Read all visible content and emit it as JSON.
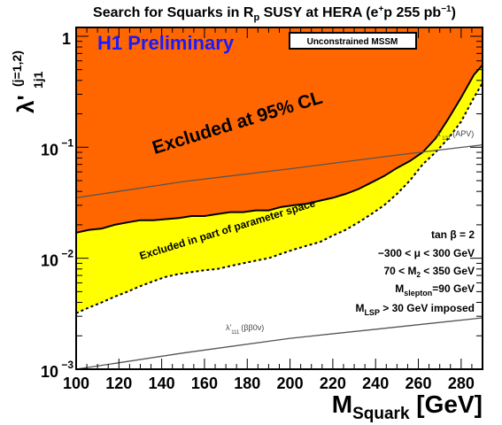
{
  "colors": {
    "excluded_strong": "#ff6600",
    "excluded_partial": "#ffff00",
    "preliminary_label": "#1a1aff",
    "frame": "#000000",
    "apv_line": "#555555",
    "bbnu_line": "#555555"
  },
  "chart_data": {
    "type": "area",
    "title_parts": {
      "pre": "Search for Squarks in ",
      "r": "R",
      "r_sub": "p",
      "post": " SUSY at HERA (e",
      "sup1": "+",
      "mid": "p 255 pb",
      "sup2": "−1",
      "end": ")"
    },
    "preliminary_label": "H1 Preliminary",
    "model_box": "Unconstrained MSSM",
    "xlabel": {
      "main": "M",
      "sub": "Squark",
      "unit": " [GeV]"
    },
    "ylabel": {
      "main": "λ'",
      "sub": "1j1",
      "extra": "(j=1,2)"
    },
    "xlim": [
      100,
      290
    ],
    "ylim": [
      0.001,
      1.2
    ],
    "yscale": "log",
    "xticks": [
      100,
      120,
      140,
      160,
      180,
      200,
      220,
      240,
      260,
      280
    ],
    "yticks": [
      {
        "value": 0.001,
        "base": "10",
        "exp": "−3"
      },
      {
        "value": 0.01,
        "base": "10",
        "exp": "−2"
      },
      {
        "value": 0.1,
        "base": "10",
        "exp": "−1"
      },
      {
        "value": 1,
        "base": "1",
        "exp": ""
      }
    ],
    "regions": {
      "excluded_95": {
        "label": "Excluded at 95% CL",
        "boundary": [
          [
            100,
            0.017
          ],
          [
            106,
            0.018
          ],
          [
            112,
            0.0185
          ],
          [
            118,
            0.02
          ],
          [
            124,
            0.021
          ],
          [
            130,
            0.022
          ],
          [
            136,
            0.022
          ],
          [
            142,
            0.0225
          ],
          [
            148,
            0.023
          ],
          [
            154,
            0.024
          ],
          [
            160,
            0.024
          ],
          [
            166,
            0.025
          ],
          [
            172,
            0.026
          ],
          [
            178,
            0.026
          ],
          [
            184,
            0.027
          ],
          [
            190,
            0.027
          ],
          [
            196,
            0.029
          ],
          [
            202,
            0.03
          ],
          [
            208,
            0.031
          ],
          [
            214,
            0.033
          ],
          [
            220,
            0.035
          ],
          [
            226,
            0.038
          ],
          [
            232,
            0.042
          ],
          [
            238,
            0.048
          ],
          [
            244,
            0.055
          ],
          [
            250,
            0.065
          ],
          [
            256,
            0.075
          ],
          [
            262,
            0.09
          ],
          [
            268,
            0.12
          ],
          [
            274,
            0.18
          ],
          [
            280,
            0.28
          ],
          [
            286,
            0.45
          ],
          [
            290,
            0.55
          ]
        ]
      },
      "excluded_partial": {
        "label": "Excluded in part of parameter space",
        "boundary": [
          [
            100,
            0.0032
          ],
          [
            106,
            0.0036
          ],
          [
            112,
            0.004
          ],
          [
            118,
            0.0045
          ],
          [
            124,
            0.005
          ],
          [
            130,
            0.0056
          ],
          [
            136,
            0.0062
          ],
          [
            142,
            0.0068
          ],
          [
            148,
            0.0072
          ],
          [
            154,
            0.0075
          ],
          [
            160,
            0.0078
          ],
          [
            166,
            0.008
          ],
          [
            172,
            0.0085
          ],
          [
            178,
            0.009
          ],
          [
            184,
            0.0095
          ],
          [
            190,
            0.01
          ],
          [
            196,
            0.011
          ],
          [
            202,
            0.012
          ],
          [
            208,
            0.013
          ],
          [
            214,
            0.014
          ],
          [
            220,
            0.016
          ],
          [
            226,
            0.018
          ],
          [
            232,
            0.021
          ],
          [
            238,
            0.025
          ],
          [
            244,
            0.03
          ],
          [
            250,
            0.038
          ],
          [
            256,
            0.05
          ],
          [
            262,
            0.07
          ],
          [
            268,
            0.09
          ],
          [
            274,
            0.12
          ],
          [
            280,
            0.17
          ],
          [
            286,
            0.28
          ],
          [
            290,
            0.38
          ]
        ]
      }
    },
    "series": [
      {
        "name": "λ'121 (APV)",
        "label_main": "λ'",
        "label_sub": "121",
        "label_extra": "(APV)",
        "points": [
          [
            100,
            0.035
          ],
          [
            150,
            0.049
          ],
          [
            200,
            0.064
          ],
          [
            250,
            0.085
          ],
          [
            290,
            0.105
          ]
        ]
      },
      {
        "name": "λ'111 (ββ0ν)",
        "label_main": "λ'",
        "label_sub": "111",
        "label_extra": "(ββ0ν)",
        "points": [
          [
            100,
            0.001
          ],
          [
            150,
            0.0014
          ],
          [
            200,
            0.0019
          ],
          [
            250,
            0.0024
          ],
          [
            290,
            0.0029
          ]
        ]
      }
    ],
    "parameters": [
      {
        "text": "tan β = 2"
      },
      {
        "text": "−300 < μ  < 300 GeV"
      },
      {
        "pre": "70 < M",
        "sub": "2",
        "post": " < 350 GeV"
      },
      {
        "pre": "M",
        "sub": "slepton",
        "post": "=90 GeV"
      },
      {
        "pre": "M",
        "sub": "LSP",
        "post": " > 30 GeV imposed"
      }
    ]
  }
}
